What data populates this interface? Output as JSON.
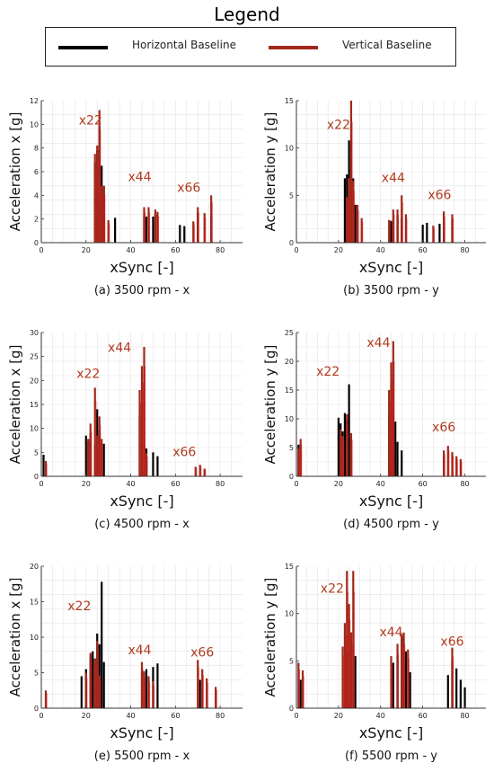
{
  "legend": {
    "title": "Legend",
    "entries": [
      {
        "label": "Horizontal Baseline",
        "color": "#000000"
      },
      {
        "label": "Vertical Baseline",
        "color": "#a0281a"
      }
    ]
  },
  "colors": {
    "horizontal": "#000000",
    "vertical": "#a0281a",
    "highlight": "#e8141a",
    "order_label": "#b03a1e",
    "grid": "#e3e3e3"
  },
  "chart_data": [
    {
      "type": "bar",
      "caption": "(a) 3500 rpm - x",
      "xlabel": "xSync [-]",
      "ylabel": "Acceleration x [g]",
      "xlim": [
        0,
        90
      ],
      "ylim": [
        0,
        12
      ],
      "xticks": [
        0,
        20,
        40,
        60,
        80
      ],
      "yticks": [
        0,
        2,
        4,
        6,
        8,
        10,
        12
      ],
      "annotations": [
        {
          "text": "x22",
          "x": 22,
          "y": 10
        },
        {
          "text": "x44",
          "x": 44,
          "y": 5.2
        },
        {
          "text": "x66",
          "x": 66,
          "y": 4.3
        }
      ],
      "series": [
        {
          "name": "Horizontal Baseline",
          "x": [
            24,
            25,
            26,
            27,
            28,
            33,
            46,
            47,
            50,
            51,
            62,
            64,
            70,
            76
          ],
          "values": [
            6.8,
            7.8,
            9.8,
            6.5,
            4.8,
            2.1,
            2.4,
            2.2,
            2.2,
            2.4,
            1.5,
            1.4,
            2.5,
            2.3
          ]
        },
        {
          "name": "Vertical Baseline",
          "x": [
            24,
            25,
            26,
            27,
            28,
            30,
            46,
            48,
            51,
            52,
            68,
            70,
            73,
            76
          ],
          "values": [
            7.5,
            8.2,
            11.2,
            4.8,
            4.8,
            1.9,
            3.0,
            3.0,
            2.8,
            2.6,
            1.8,
            3.0,
            2.5,
            4.0
          ]
        }
      ]
    },
    {
      "type": "bar",
      "caption": "(b) 3500 rpm - y",
      "xlabel": "xSync [-]",
      "ylabel": "Acceleration y [g]",
      "xlim": [
        0,
        90
      ],
      "ylim": [
        0,
        15
      ],
      "xticks": [
        0,
        20,
        40,
        60,
        80
      ],
      "yticks": [
        0,
        5,
        10,
        15
      ],
      "annotations": [
        {
          "text": "x22",
          "x": 20,
          "y": 12
        },
        {
          "text": "x44",
          "x": 46,
          "y": 6.4
        },
        {
          "text": "x66",
          "x": 68,
          "y": 4.6
        }
      ],
      "series": [
        {
          "name": "Horizontal Baseline",
          "x": [
            23,
            24,
            25,
            26,
            27,
            28,
            45,
            48,
            50,
            60,
            62,
            68,
            70,
            74
          ],
          "values": [
            6.8,
            7.2,
            10.8,
            7.8,
            6.8,
            4.0,
            2.3,
            2.8,
            2.6,
            1.9,
            2.1,
            2.0,
            2.2,
            2.5
          ]
        },
        {
          "name": "Vertical Baseline",
          "x": [
            24,
            25,
            26,
            27,
            29,
            31,
            44,
            46,
            48,
            50,
            52,
            65,
            70,
            74
          ],
          "values": [
            4.8,
            6.8,
            15.0,
            6.5,
            4.0,
            2.6,
            2.4,
            3.5,
            3.5,
            5.0,
            3.0,
            1.8,
            3.3,
            3.0
          ]
        }
      ]
    },
    {
      "type": "bar",
      "caption": "(c) 4500 rpm - x",
      "xlabel": "xSync [-]",
      "ylabel": "Acceleration x [g]",
      "xlim": [
        0,
        90
      ],
      "ylim": [
        0,
        30
      ],
      "xticks": [
        0,
        20,
        40,
        60,
        80
      ],
      "yticks": [
        0,
        5,
        10,
        15,
        20,
        25,
        30
      ],
      "annotations": [
        {
          "text": "x22",
          "x": 21,
          "y": 20.5
        },
        {
          "text": "x44",
          "x": 35,
          "y": 26
        },
        {
          "text": "x66",
          "x": 64,
          "y": 4.2
        }
      ],
      "series": [
        {
          "name": "Horizontal Baseline",
          "x": [
            1,
            20,
            21,
            22,
            24,
            25,
            26,
            28,
            44,
            45,
            46,
            47,
            50,
            52
          ],
          "values": [
            4.5,
            8.5,
            7.2,
            9.0,
            6.5,
            14.0,
            9.5,
            6.8,
            12.5,
            14.8,
            6.8,
            5.8,
            5.0,
            4.2
          ]
        },
        {
          "name": "Vertical Baseline",
          "x": [
            2,
            21,
            22,
            24,
            25,
            26,
            27,
            44,
            45,
            46,
            47,
            69,
            71,
            73
          ],
          "values": [
            3.2,
            7.8,
            11.0,
            18.5,
            8.5,
            12.5,
            7.8,
            18.0,
            23.0,
            27.0,
            4.8,
            2.0,
            2.4,
            1.6
          ]
        }
      ]
    },
    {
      "type": "bar",
      "caption": "(d) 4500 rpm - y",
      "xlabel": "xSync [-]",
      "ylabel": "Acceleration y [g]",
      "xlim": [
        0,
        90
      ],
      "ylim": [
        0,
        25
      ],
      "xticks": [
        0,
        20,
        40,
        60,
        80
      ],
      "yticks": [
        0,
        5,
        10,
        15,
        20,
        25
      ],
      "annotations": [
        {
          "text": "x22",
          "x": 15,
          "y": 17.5
        },
        {
          "text": "x44",
          "x": 39,
          "y": 22.5
        },
        {
          "text": "x66",
          "x": 70,
          "y": 7.8
        }
      ],
      "series": [
        {
          "name": "Horizontal Baseline",
          "x": [
            1,
            20,
            21,
            22,
            23,
            24,
            25,
            26,
            44,
            45,
            46,
            47,
            48,
            50
          ],
          "values": [
            5.5,
            10.2,
            9.2,
            7.8,
            11.0,
            9.8,
            16.0,
            6.5,
            10.8,
            15.2,
            10.8,
            9.5,
            6.0,
            4.5
          ]
        },
        {
          "name": "Vertical Baseline",
          "x": [
            1,
            2,
            21,
            22,
            24,
            26,
            44,
            45,
            46,
            70,
            72,
            74,
            76,
            78
          ],
          "values": [
            4.8,
            6.5,
            8.2,
            7.0,
            10.8,
            7.5,
            15.0,
            19.8,
            23.5,
            4.5,
            5.3,
            4.2,
            3.5,
            3.0
          ]
        }
      ]
    },
    {
      "type": "bar",
      "caption": "(e) 5500 rpm - x",
      "xlabel": "xSync [-]",
      "ylabel": "Acceleration x [g]",
      "xlim": [
        0,
        90
      ],
      "ylim": [
        0,
        20
      ],
      "xticks": [
        0,
        20,
        40,
        60,
        80
      ],
      "yticks": [
        0,
        5,
        10,
        15,
        20
      ],
      "annotations": [
        {
          "text": "x22",
          "x": 17,
          "y": 13.8
        },
        {
          "text": "x44",
          "x": 44,
          "y": 7.6
        },
        {
          "text": "x66",
          "x": 72,
          "y": 7.3
        }
      ],
      "series": [
        {
          "name": "Horizontal Baseline",
          "x": [
            18,
            20,
            22,
            23,
            24,
            25,
            26,
            27,
            28,
            45,
            47,
            50,
            52,
            71
          ],
          "values": [
            4.5,
            5.5,
            7.5,
            8.0,
            7.0,
            10.5,
            9.0,
            17.8,
            6.5,
            5.0,
            5.5,
            5.8,
            6.3,
            4.0
          ]
        },
        {
          "name": "Vertical Baseline",
          "x": [
            2,
            20,
            22,
            24,
            25,
            26,
            45,
            46,
            48,
            50,
            70,
            72,
            74,
            78
          ],
          "values": [
            2.5,
            5.0,
            7.8,
            7.0,
            9.5,
            4.6,
            6.5,
            5.2,
            4.5,
            3.8,
            6.8,
            5.5,
            4.2,
            3.0
          ]
        }
      ]
    },
    {
      "type": "bar",
      "caption": "(f) 5500 rpm - y",
      "xlabel": "xSync [-]",
      "ylabel": "Acceleration y [g]",
      "xlim": [
        0,
        90
      ],
      "ylim": [
        0,
        15
      ],
      "xticks": [
        0,
        20,
        40,
        60,
        80
      ],
      "yticks": [
        0,
        5,
        10,
        15
      ],
      "annotations": [
        {
          "text": "x22",
          "x": 17,
          "y": 12.2
        },
        {
          "text": "x44",
          "x": 45,
          "y": 7.6
        },
        {
          "text": "x66",
          "x": 74,
          "y": 6.6
        }
      ],
      "series": [
        {
          "name": "Horizontal Baseline",
          "x": [
            2,
            24,
            26,
            28,
            46,
            48,
            50,
            52,
            54,
            72,
            74,
            76,
            78,
            80
          ],
          "values": [
            3.0,
            6.0,
            8.0,
            5.5,
            4.8,
            5.5,
            7.5,
            6.0,
            3.8,
            3.5,
            5.0,
            4.2,
            3.0,
            2.2
          ]
        },
        {
          "name": "Vertical Baseline",
          "x": [
            1,
            3,
            22,
            23,
            24,
            25,
            26,
            27,
            45,
            48,
            50,
            51,
            53,
            74
          ],
          "values": [
            4.8,
            4.0,
            6.5,
            9.0,
            14.5,
            11.0,
            8.0,
            14.5,
            5.5,
            6.8,
            7.8,
            8.0,
            6.2,
            6.4
          ]
        }
      ]
    }
  ]
}
